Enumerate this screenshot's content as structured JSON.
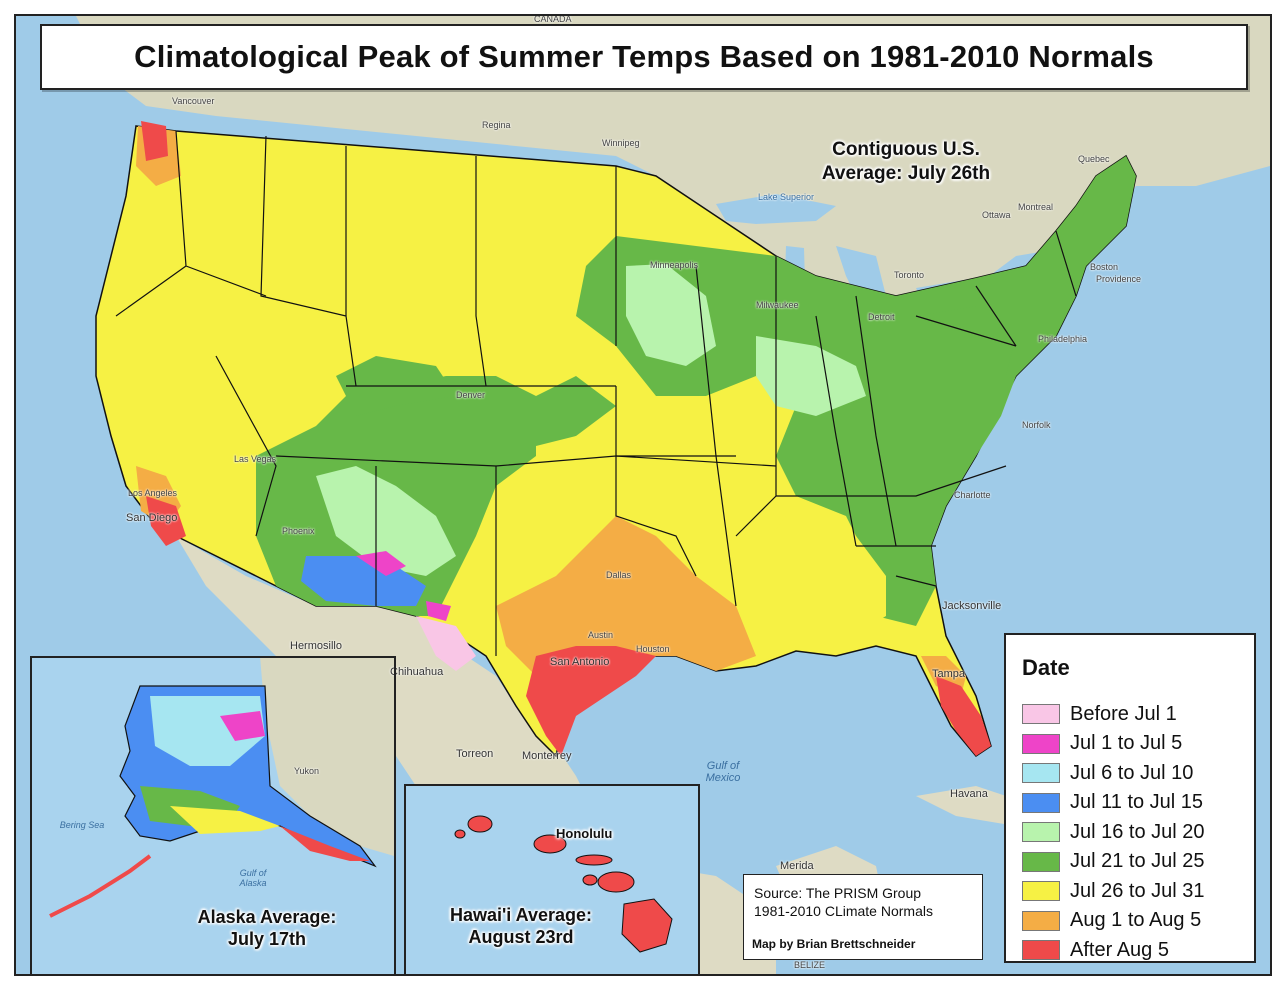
{
  "title": "Climatological Peak of Summer Temps Based on 1981-2010 Normals",
  "contiguous_average": [
    "Contiguous U.S.",
    "Average: July 26th"
  ],
  "alaska_average": [
    "Alaska Average:",
    "July 17th"
  ],
  "hawaii_average": [
    "Hawai'i Average:",
    "August 23rd"
  ],
  "legend": {
    "title": "Date",
    "items": [
      {
        "label": "Before Jul 1",
        "color": "#f9c6e6"
      },
      {
        "label": "Jul 1 to Jul 5",
        "color": "#ee44c8"
      },
      {
        "label": "Jul 6 to Jul 10",
        "color": "#a6e6f1"
      },
      {
        "label": "Jul 11 to Jul 15",
        "color": "#4b8ef2"
      },
      {
        "label": "Jul 16 to Jul 20",
        "color": "#b8f3ad"
      },
      {
        "label": "Jul 21 to Jul 25",
        "color": "#67b848"
      },
      {
        "label": "Jul 26 to Jul 31",
        "color": "#f6f144"
      },
      {
        "label": "Aug 1 to Aug 5",
        "color": "#f4ad45"
      },
      {
        "label": "After Aug 5",
        "color": "#ef4a4a"
      }
    ]
  },
  "source": {
    "line1": "Source: The PRISM Group",
    "line2": "1981-2010 CLimate Normals",
    "credit": "Map by Brian Brettschneider"
  },
  "places": {
    "canada": "CANADA",
    "vancouver": "Vancouver",
    "regina": "Regina",
    "winnipeg": "Winnipeg",
    "quebec": "Quebec",
    "ottawa": "Ottawa",
    "montreal": "Montreal",
    "toronto": "Toronto",
    "boston": "Boston",
    "providence": "Providence",
    "philadelphia": "Philadelphia",
    "norfolk": "Norfolk",
    "charlotte": "Charlotte",
    "jacksonville": "Jacksonville",
    "tampa": "Tampa",
    "havana": "Havana",
    "merida": "Merida",
    "monterrey": "Monterrey",
    "torreon": "Torreon",
    "chihuahua": "Chihuahua",
    "hermosillo": "Hermosillo",
    "san_diego": "San Diego",
    "los_angeles": "Los Angeles",
    "phoenix": "Phoenix",
    "las_vegas": "Las Vegas",
    "denver": "Denver",
    "dallas": "Dallas",
    "austin": "Austin",
    "houston": "Houston",
    "san_antonio": "San Antonio",
    "minneapolis": "Minneapolis",
    "milwaukee": "Milwaukee",
    "detroit": "Detroit",
    "honolulu": "Honolulu",
    "gulf_of_mexico": "Gulf of Mexico",
    "belize": "BELIZE",
    "lake_superior": "Lake Superior",
    "bering_sea": "Bering Sea",
    "gulf_of_alaska": "Gulf of Alaska",
    "yukon": "Yukon"
  }
}
